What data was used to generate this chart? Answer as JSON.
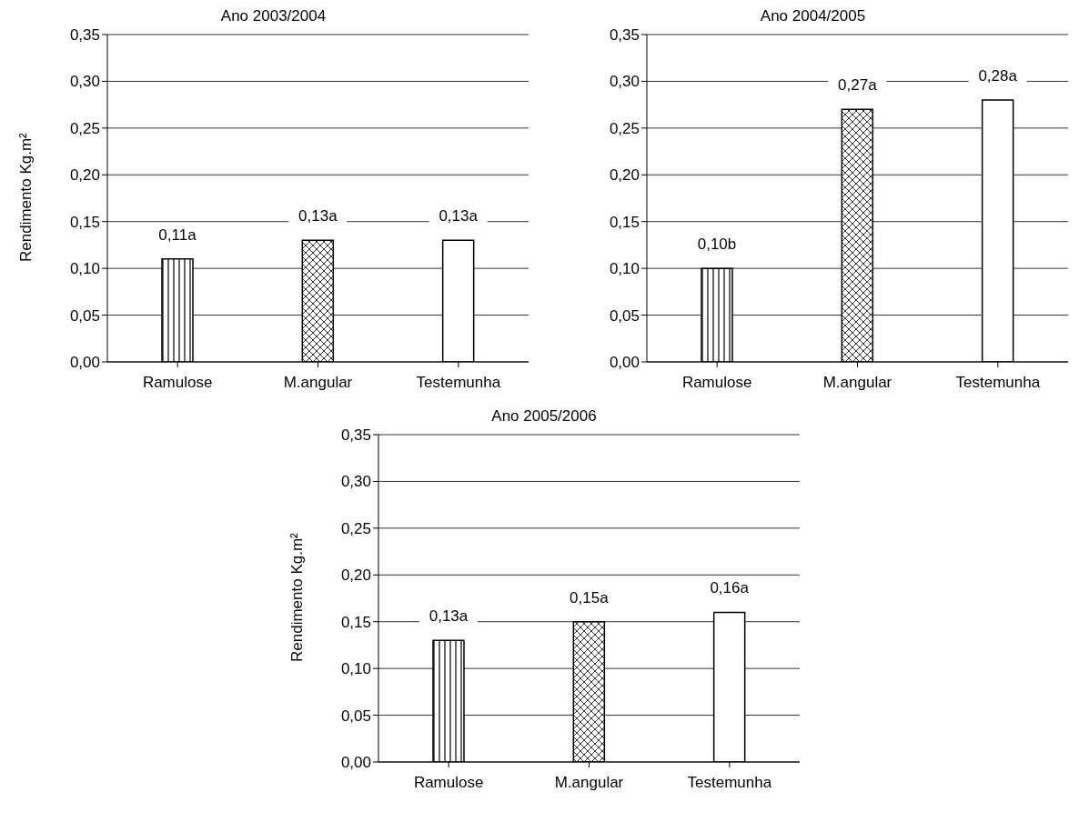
{
  "chart_data": [
    {
      "type": "bar",
      "title": "Ano 2003/2004",
      "ylabel": "Rendimento Kg.m²",
      "categories": [
        "Ramulose",
        "M.angular",
        "Testemunha"
      ],
      "values": [
        0.11,
        0.13,
        0.13
      ],
      "colors": [
        "#000000",
        "#000000",
        "#ffffff"
      ],
      "value_labels": [
        "0,11a",
        "0,13a",
        "0,13a"
      ],
      "ylim": [
        0,
        0.35
      ],
      "yticks": [
        {
          "value": 0,
          "label": "0,00"
        },
        {
          "value": 0.05,
          "label": "0,05"
        },
        {
          "value": 0.1,
          "label": "0,10"
        },
        {
          "value": 0.15,
          "label": "0,15"
        },
        {
          "value": 0.2,
          "label": "0,20"
        },
        {
          "value": 0.25,
          "label": "0,25"
        },
        {
          "value": 0.3,
          "label": "0,30"
        },
        {
          "value": 0.35,
          "label": "0,35"
        }
      ],
      "grid": "y",
      "legend": false
    },
    {
      "type": "bar",
      "title": "Ano 2004/2005",
      "categories": [
        "Ramulose",
        "M.angular",
        "Testemunha"
      ],
      "values": [
        0.1,
        0.27,
        0.28
      ],
      "colors": [
        "#000000",
        "#000000",
        "#ffffff"
      ],
      "value_labels": [
        "0,10b",
        "0,27a",
        "0,28a"
      ],
      "ylim": [
        0,
        0.35
      ],
      "yticks": [
        {
          "value": 0,
          "label": "0,00"
        },
        {
          "value": 0.05,
          "label": "0,05"
        },
        {
          "value": 0.1,
          "label": "0,10"
        },
        {
          "value": 0.15,
          "label": "0,15"
        },
        {
          "value": 0.2,
          "label": "0,20"
        },
        {
          "value": 0.25,
          "label": "0,25"
        },
        {
          "value": 0.3,
          "label": "0,30"
        },
        {
          "value": 0.35,
          "label": "0,35"
        }
      ],
      "grid": "y",
      "legend": false
    },
    {
      "type": "bar",
      "title": "Ano 2005/2006",
      "ylabel": "Rendimento Kg.m²",
      "categories": [
        "Ramulose",
        "M.angular",
        "Testemunha"
      ],
      "values": [
        0.13,
        0.15,
        0.16
      ],
      "colors": [
        "#000000",
        "#000000",
        "#ffffff"
      ],
      "value_labels": [
        "0,13a",
        "0,15a",
        "0,16a"
      ],
      "ylim": [
        0,
        0.35
      ],
      "yticks": [
        {
          "value": 0,
          "label": "0,00"
        },
        {
          "value": 0.05,
          "label": "0,05"
        },
        {
          "value": 0.1,
          "label": "0,10"
        },
        {
          "value": 0.15,
          "label": "0,15"
        },
        {
          "value": 0.2,
          "label": "0,20"
        },
        {
          "value": 0.25,
          "label": "0,25"
        },
        {
          "value": 0.3,
          "label": "0,30"
        },
        {
          "value": 0.35,
          "label": "0,35"
        }
      ],
      "grid": "y",
      "legend": false
    }
  ]
}
